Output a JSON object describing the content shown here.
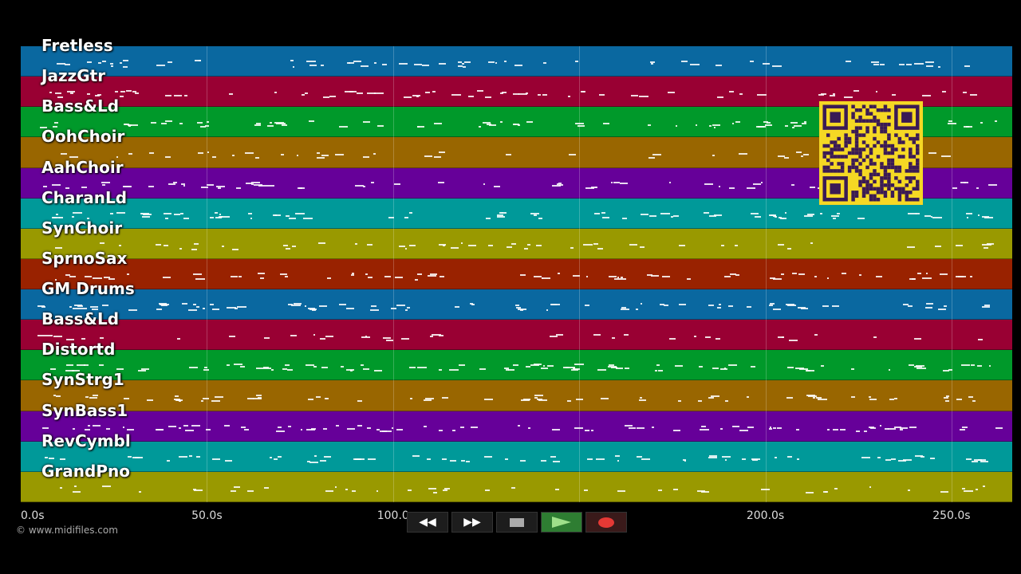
{
  "tracks": [
    {
      "name": "Fretless",
      "color": "#0a68a0"
    },
    {
      "name": "JazzGtr",
      "color": "#990033"
    },
    {
      "name": "Bass&Ld",
      "color": "#00992a"
    },
    {
      "name": "OohChoir",
      "color": "#996600"
    },
    {
      "name": "AahChoir",
      "color": "#660099"
    },
    {
      "name": "CharanLd",
      "color": "#009999"
    },
    {
      "name": "SynChoir",
      "color": "#999900"
    },
    {
      "name": "SprnoSax",
      "color": "#992200"
    },
    {
      "name": "GM Drums",
      "color": "#0a68a0"
    },
    {
      "name": "Bass&Ld",
      "color": "#990033"
    },
    {
      "name": "Distortd",
      "color": "#00992a"
    },
    {
      "name": "SynStrg1",
      "color": "#996600"
    },
    {
      "name": "SynBass1",
      "color": "#660099"
    },
    {
      "name": "RevCymbl",
      "color": "#009999"
    },
    {
      "name": "GrandPno",
      "color": "#999900"
    }
  ],
  "timeline": {
    "max_seconds": 266.3,
    "ticks": [
      {
        "seconds": 0,
        "label": "0.0s"
      },
      {
        "seconds": 50,
        "label": "50.0s"
      },
      {
        "seconds": 100,
        "label": "100.0"
      },
      {
        "seconds": 150,
        "label": ""
      },
      {
        "seconds": 200,
        "label": "200.0s"
      },
      {
        "seconds": 250,
        "label": "250.0s"
      }
    ]
  },
  "copyright": "© www.midifiles.com",
  "transport": {
    "rewind_icon": "rewind-icon",
    "forward_icon": "fast-forward-icon",
    "stop_icon": "stop-icon",
    "play_icon": "play-icon",
    "record_icon": "record-icon"
  },
  "qr_code": {
    "icon": "qr-code-icon",
    "color": "#f5d824"
  }
}
